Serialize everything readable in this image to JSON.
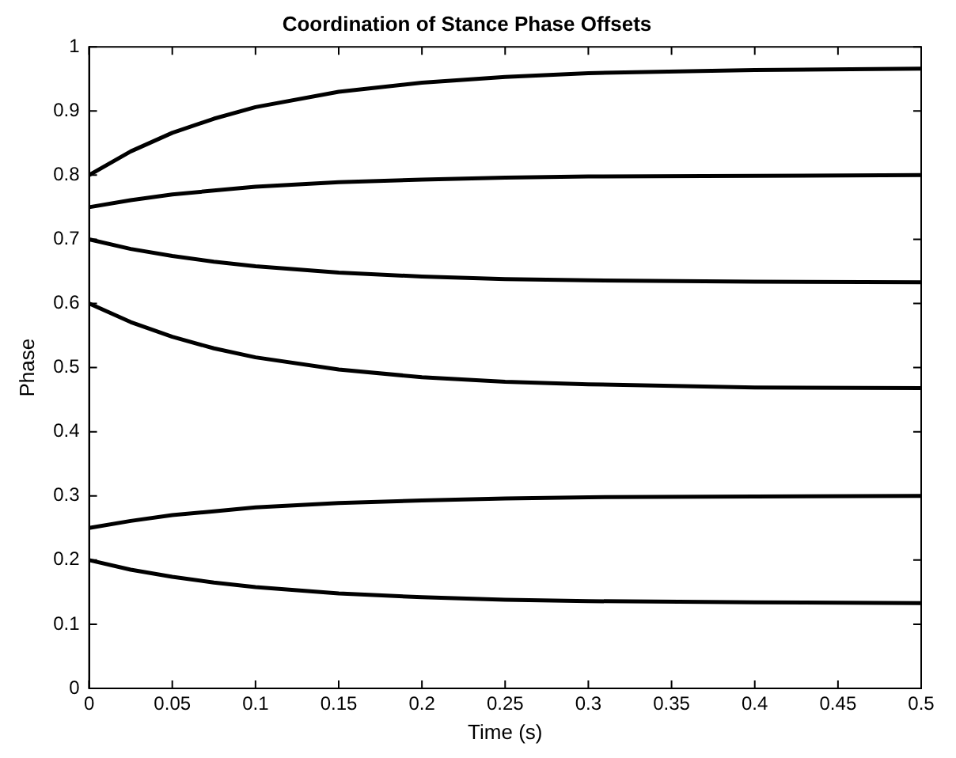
{
  "chart_data": {
    "type": "line",
    "title": "Coordination of Stance Phase Offsets",
    "xlabel": "Time (s)",
    "ylabel": "Phase",
    "x": [
      0,
      0.025,
      0.05,
      0.075,
      0.1,
      0.15,
      0.2,
      0.25,
      0.3,
      0.4,
      0.5
    ],
    "series": [
      {
        "color": "#000000",
        "values": [
          0.8,
          0.837,
          0.866,
          0.888,
          0.906,
          0.93,
          0.944,
          0.953,
          0.959,
          0.964,
          0.966
        ]
      },
      {
        "color": "#000000",
        "values": [
          0.75,
          0.761,
          0.77,
          0.776,
          0.782,
          0.789,
          0.793,
          0.796,
          0.798,
          0.799,
          0.8
        ]
      },
      {
        "color": "#000000",
        "values": [
          0.7,
          0.685,
          0.674,
          0.665,
          0.658,
          0.648,
          0.642,
          0.638,
          0.636,
          0.634,
          0.633
        ]
      },
      {
        "color": "#000000",
        "values": [
          0.6,
          0.571,
          0.548,
          0.53,
          0.516,
          0.497,
          0.485,
          0.478,
          0.474,
          0.469,
          0.468
        ]
      },
      {
        "color": "#000000",
        "values": [
          0.25,
          0.261,
          0.27,
          0.276,
          0.282,
          0.289,
          0.293,
          0.296,
          0.298,
          0.299,
          0.3
        ]
      },
      {
        "color": "#000000",
        "values": [
          0.2,
          0.185,
          0.174,
          0.165,
          0.158,
          0.148,
          0.142,
          0.138,
          0.136,
          0.134,
          0.133
        ]
      }
    ],
    "xlim": [
      0,
      0.5
    ],
    "xticks": [
      0,
      0.05,
      0.1,
      0.15,
      0.2,
      0.25,
      0.3,
      0.35,
      0.4,
      0.45,
      0.5
    ],
    "ylim": [
      0,
      1
    ],
    "yticks": [
      0,
      0.1,
      0.2,
      0.3,
      0.4,
      0.5,
      0.6,
      0.7,
      0.8,
      0.9,
      1
    ],
    "grid": false,
    "legend": false,
    "marker": "none",
    "line_style": "solid"
  }
}
